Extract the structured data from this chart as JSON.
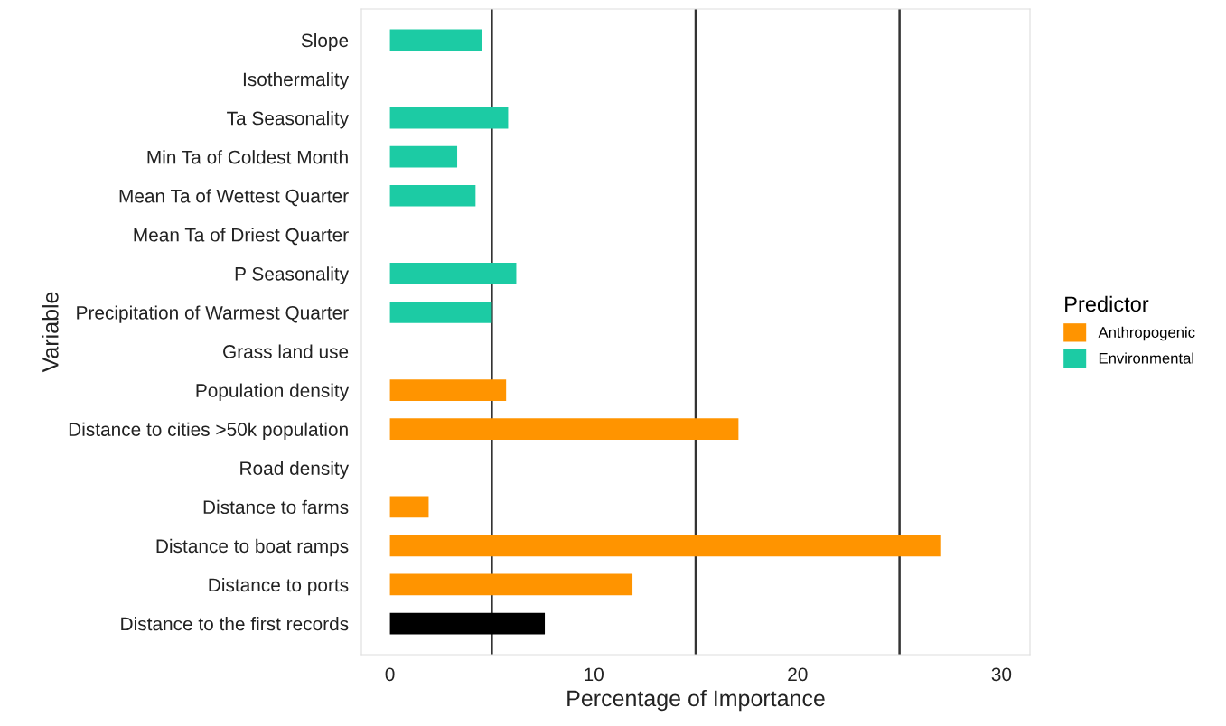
{
  "chart_data": {
    "type": "bar",
    "orientation": "horizontal",
    "xlabel": "Percentage of Importance",
    "ylabel": "Variable",
    "legend_title": "Predictor",
    "legend": "right",
    "categories": [
      "Slope",
      "Isothermality",
      "Ta Seasonality",
      "Min Ta of Coldest Month",
      "Mean Ta of Wettest Quarter",
      "Mean Ta of Driest Quarter",
      "P Seasonality",
      "Precipitation of Warmest Quarter",
      "Grass land use",
      "Population density",
      "Distance to cities >50k population",
      "Road density",
      "Distance to farms",
      "Distance to boat ramps",
      "Distance to ports",
      "Distance to the first records"
    ],
    "series": [
      {
        "name": "Anthropogenic",
        "color": "#ff9400",
        "values": [
          null,
          null,
          null,
          null,
          null,
          null,
          null,
          null,
          null,
          5.7,
          17.1,
          null,
          1.9,
          27.0,
          11.9,
          null
        ]
      },
      {
        "name": "Environmental",
        "color": "#1ccba4",
        "values": [
          4.5,
          null,
          5.8,
          3.3,
          4.2,
          null,
          6.2,
          5.0,
          null,
          null,
          null,
          null,
          null,
          null,
          null,
          null
        ]
      },
      {
        "color": "#000000",
        "values": [
          null,
          null,
          null,
          null,
          null,
          null,
          null,
          null,
          null,
          null,
          null,
          null,
          null,
          null,
          null,
          7.6
        ]
      }
    ],
    "xlim": [
      -1.4,
      31.4
    ],
    "xticks": [
      0,
      10,
      20,
      30
    ],
    "ref_lines": [
      {
        "axis": "x",
        "value": 5,
        "color": "#333333"
      },
      {
        "axis": "x",
        "value": 15,
        "color": "#333333"
      },
      {
        "axis": "x",
        "value": 25,
        "color": "#333333"
      }
    ]
  }
}
